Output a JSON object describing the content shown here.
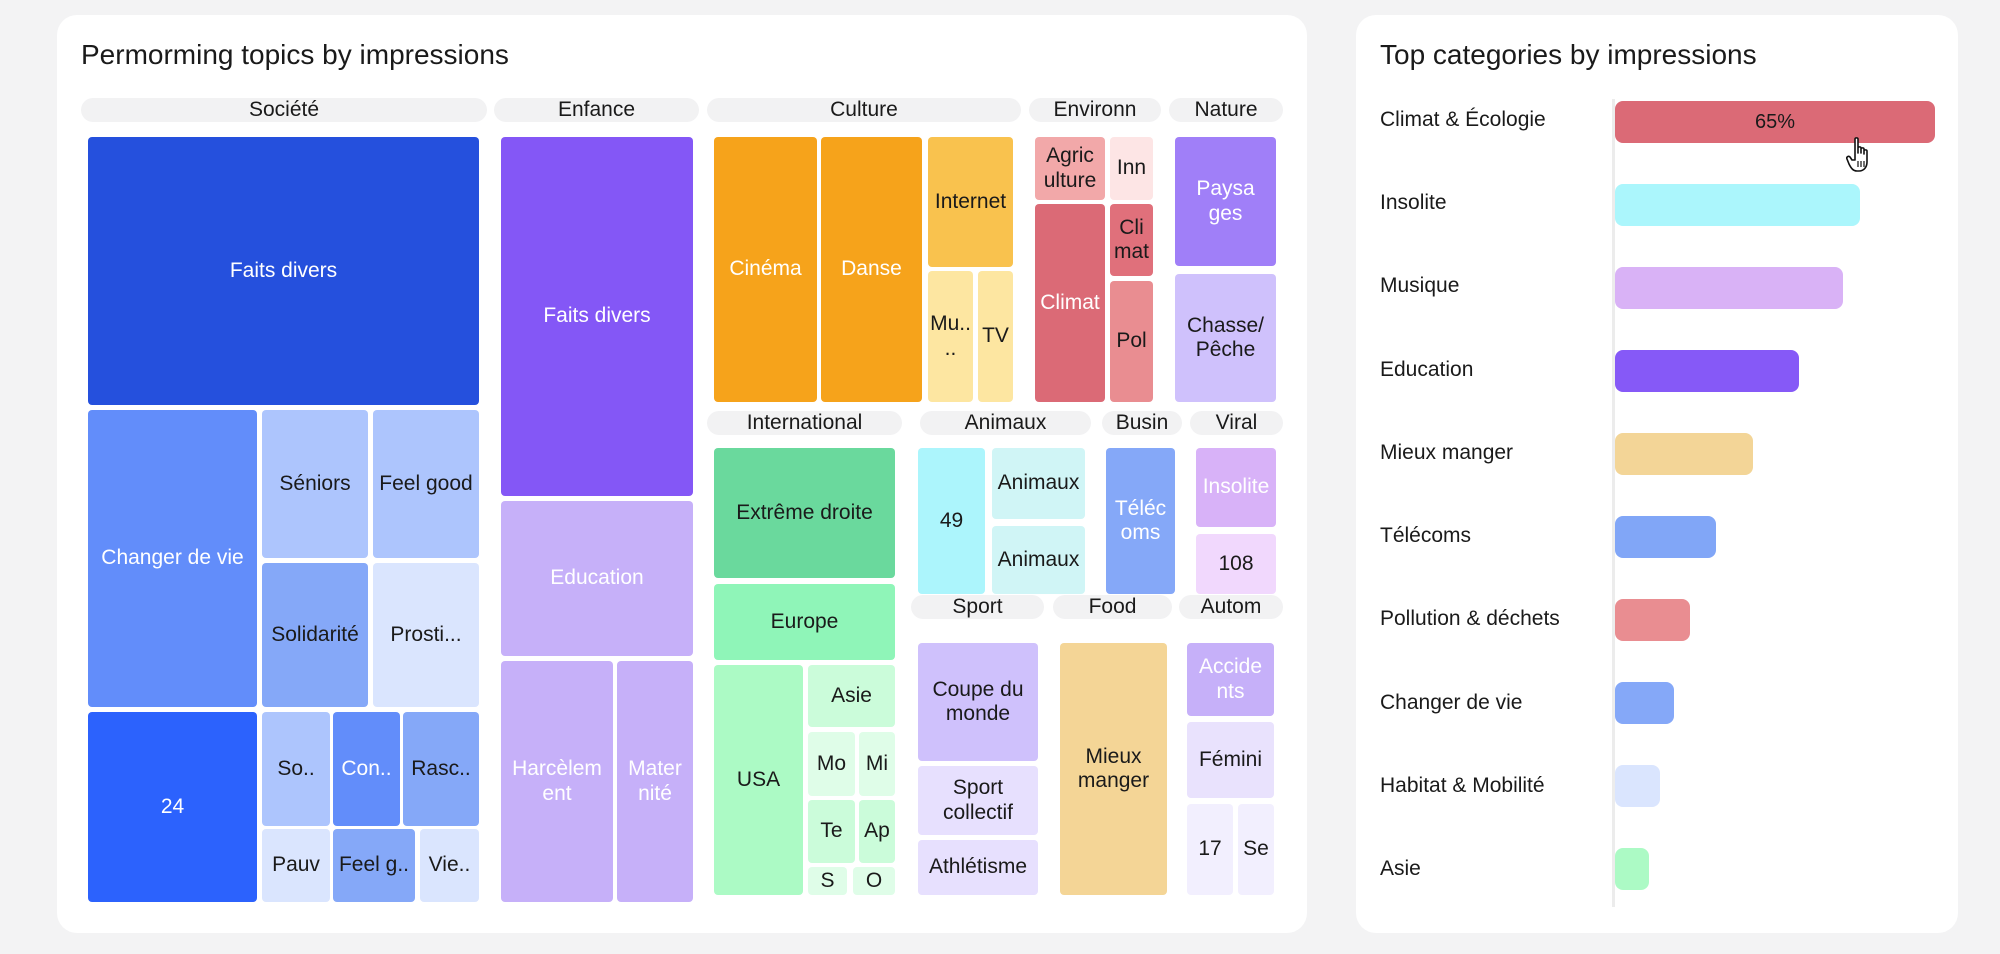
{
  "treemap": {
    "title": "Permorming topics by impressions",
    "groups": [
      {
        "name": "Société",
        "tiles": [
          {
            "label": "Faits divers",
            "color": "#2550dd"
          },
          {
            "label": "Changer de vie",
            "color": "#628dfa"
          },
          {
            "label": "Séniors",
            "color": "#adc5fd"
          },
          {
            "label": "Feel good",
            "color": "#adc5fd"
          },
          {
            "label": "Solidarité",
            "color": "#85a8f8"
          },
          {
            "label": "Prosti...",
            "color": "#dae5fe"
          },
          {
            "label": "24",
            "color": "#2c62fd"
          },
          {
            "label": "So..",
            "color": "#adc5fd"
          },
          {
            "label": "Con..",
            "color": "#628dfa"
          },
          {
            "label": "Rasc..",
            "color": "#85a8f8"
          },
          {
            "label": "Pauv",
            "color": "#dae5fe"
          },
          {
            "label": "Feel g..",
            "color": "#85a8f8"
          },
          {
            "label": "Vie..",
            "color": "#dae5fe"
          }
        ]
      },
      {
        "name": "Enfance",
        "tiles": [
          {
            "label": "Faits divers",
            "color": "#8457f6"
          },
          {
            "label": "Education",
            "color": "#c6b0f9"
          },
          {
            "label": "Harcèlem ent",
            "color": "#c6b0f9"
          },
          {
            "label": "Mater nité",
            "color": "#c6b0f9"
          }
        ]
      },
      {
        "name": "Culture",
        "tiles": [
          {
            "label": "Cinéma",
            "color": "#f6a31b"
          },
          {
            "label": "Danse",
            "color": "#f6a31b"
          },
          {
            "label": "Internet",
            "color": "#f9c24e"
          },
          {
            "label": "Mu.. ..",
            "color": "#fde6a1"
          },
          {
            "label": "TV",
            "color": "#fde6a1"
          }
        ]
      },
      {
        "name": "Environn",
        "tiles": [
          {
            "label": "Agric ulture",
            "color": "#f2a8a9"
          },
          {
            "label": "Inn",
            "color": "#fde5e5"
          },
          {
            "label": "Climat",
            "color": "#db6a76"
          },
          {
            "label": "Cli mat",
            "color": "#e0707b"
          },
          {
            "label": "Pol",
            "color": "#e98d91"
          }
        ]
      },
      {
        "name": "Nature",
        "tiles": [
          {
            "label": "Paysa ges",
            "color": "#a07ff8"
          },
          {
            "label": "Chasse/ Pêche",
            "color": "#cfc1fc"
          }
        ]
      },
      {
        "name": "International",
        "tiles": [
          {
            "label": "Extrême droite",
            "color": "#6ad99d"
          },
          {
            "label": "Europe",
            "color": "#8ff5b8"
          },
          {
            "label": "USA",
            "color": "#acfac5"
          },
          {
            "label": "Asie",
            "color": "#cbfcda"
          },
          {
            "label": "Mo",
            "color": "#dffde8"
          },
          {
            "label": "Mi",
            "color": "#dffde8"
          },
          {
            "label": "Te",
            "color": "#cbfcda"
          },
          {
            "label": "Ap",
            "color": "#cbfcda"
          },
          {
            "label": "S",
            "color": "#dffde8"
          },
          {
            "label": "O",
            "color": "#dffde8"
          }
        ]
      },
      {
        "name": "Animaux",
        "tiles": [
          {
            "label": "49",
            "color": "#acf5fc"
          },
          {
            "label": "Animaux",
            "color": "#d0f5f6"
          },
          {
            "label": "Animaux",
            "color": "#d0f5f6"
          }
        ]
      },
      {
        "name": "Busin",
        "tiles": [
          {
            "label": "Téléc oms",
            "color": "#85a8f8"
          }
        ]
      },
      {
        "name": "Viral",
        "tiles": [
          {
            "label": "Insolite",
            "color": "#d8b2f8"
          },
          {
            "label": "108",
            "color": "#f1d8fd"
          }
        ]
      },
      {
        "name": "Sport",
        "tiles": [
          {
            "label": "Coupe du monde",
            "color": "#cfc1fc"
          },
          {
            "label": "Sport collectif",
            "color": "#e7e0fe"
          },
          {
            "label": "Athlétisme",
            "color": "#e7e0fe"
          }
        ]
      },
      {
        "name": "Food",
        "tiles": [
          {
            "label": "Mieux manger",
            "color": "#f4d596"
          }
        ]
      },
      {
        "name": "Autom",
        "tiles": [
          {
            "label": "Accide nts",
            "color": "#c6b0f9"
          },
          {
            "label": "Fémini",
            "color": "#e9e2fd"
          },
          {
            "label": "17",
            "color": "#f2effe"
          },
          {
            "label": "Se",
            "color": "#f2effe"
          }
        ]
      }
    ]
  },
  "bars": {
    "title": "Top categories by impressions",
    "highlight_label": "65%",
    "cursor_icon": "hand-pointer-icon",
    "items": [
      {
        "label": "Climat & Écologie",
        "value": 1.0,
        "color": "#db6a76"
      },
      {
        "label": "Insolite",
        "value": 0.766,
        "color": "#abf6fc"
      },
      {
        "label": "Musique",
        "value": 0.712,
        "color": "#d9b2f6"
      },
      {
        "label": "Education",
        "value": 0.576,
        "color": "#8659f7"
      },
      {
        "label": "Mieux manger",
        "value": 0.43,
        "color": "#f3d597"
      },
      {
        "label": "Télécoms",
        "value": 0.316,
        "color": "#81a6f7"
      },
      {
        "label": "Pollution & déchets",
        "value": 0.234,
        "color": "#e98d91"
      },
      {
        "label": "Changer de vie",
        "value": 0.184,
        "color": "#85a8f8"
      },
      {
        "label": "Habitat & Mobilité",
        "value": 0.14,
        "color": "#dae5fe"
      },
      {
        "label": "Asie",
        "value": 0.106,
        "color": "#acfac5"
      }
    ]
  },
  "chart_data": [
    {
      "type": "treemap",
      "title": "Permorming topics by impressions",
      "groups": [
        "Société",
        "Enfance",
        "Culture",
        "Environn",
        "Nature",
        "International",
        "Animaux",
        "Busin",
        "Viral",
        "Sport",
        "Food",
        "Autom"
      ],
      "value_labels": {
        "24": "24",
        "49": "49",
        "108": "108",
        "17": "17"
      }
    },
    {
      "type": "bar",
      "orientation": "horizontal",
      "title": "Top categories by impressions",
      "categories": [
        "Climat & Écologie",
        "Insolite",
        "Musique",
        "Education",
        "Mieux manger",
        "Télécoms",
        "Pollution & déchets",
        "Changer de vie",
        "Habitat & Mobilité",
        "Asie"
      ],
      "values": [
        65,
        49.8,
        46.3,
        37.4,
        28,
        20.5,
        15.2,
        12,
        9.1,
        6.9
      ],
      "data_labels": {
        "Climat & Écologie": "65%"
      }
    }
  ]
}
